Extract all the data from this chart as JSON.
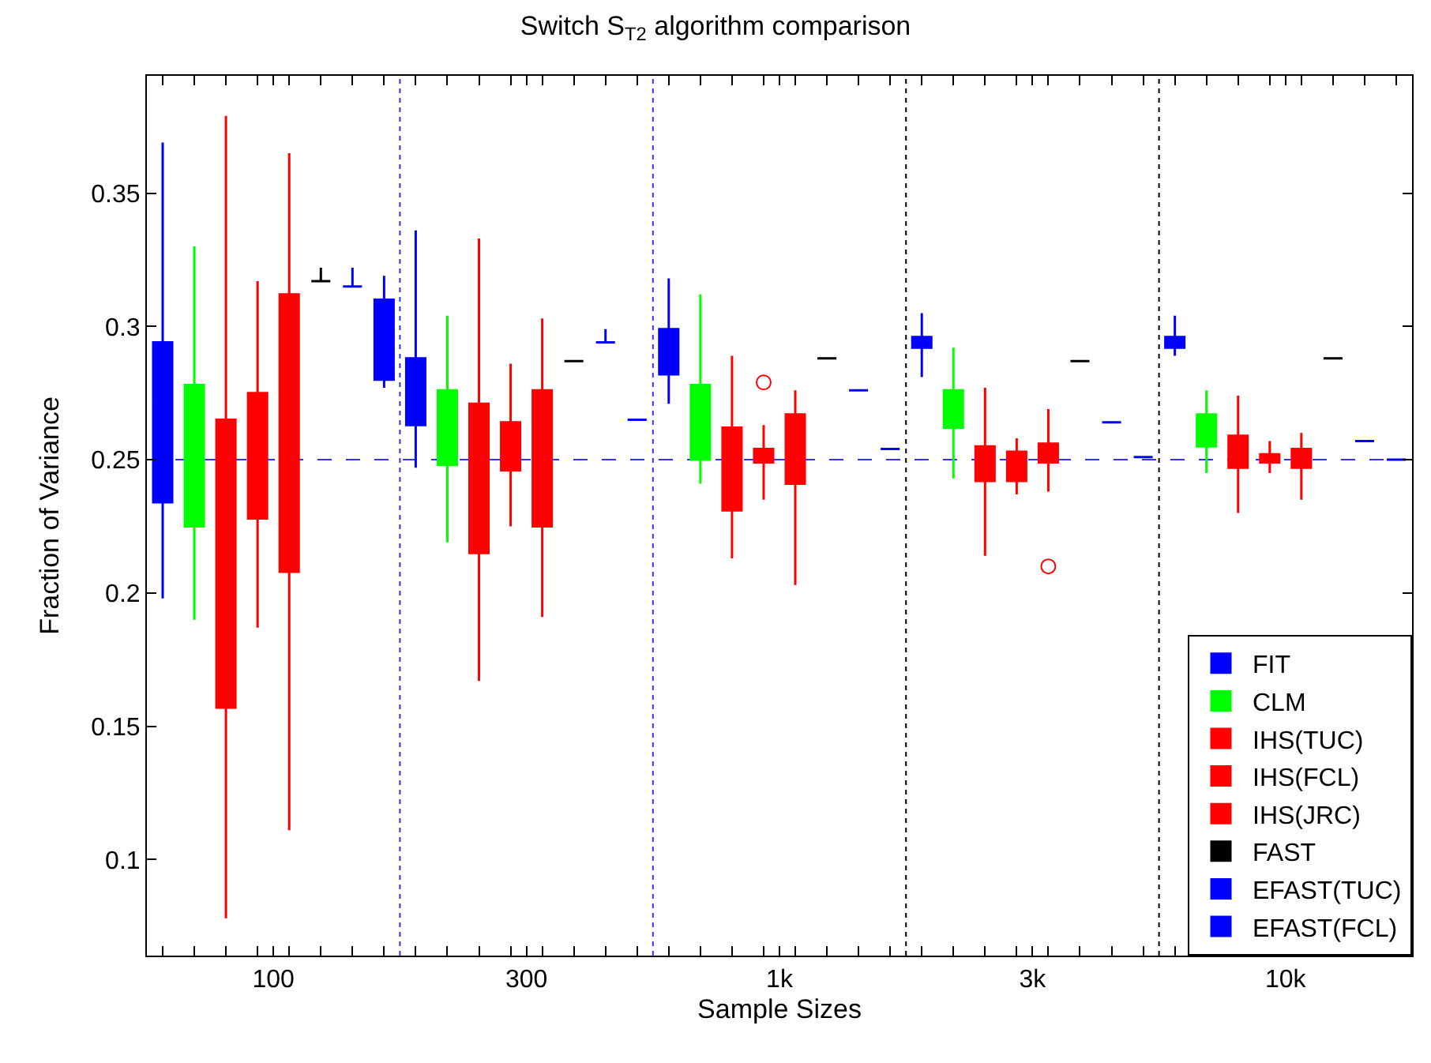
{
  "chart_data": {
    "type": "box",
    "title": "Switch S$_{T2}$ algorithm comparison",
    "xlabel": "Sample Sizes",
    "ylabel": "Fraction of Variance",
    "categories": [
      "100",
      "300",
      "1k",
      "3k",
      "10k"
    ],
    "ylim": [
      0.064,
      0.394
    ],
    "yticks": [
      0.1,
      0.15,
      0.2,
      0.25,
      0.3,
      0.35
    ],
    "legend": "bottom right",
    "ref_lines": [
      {
        "axis": "y",
        "value": 0.25,
        "color": "#3333ff",
        "line_style": "dashed"
      }
    ],
    "series": [
      {
        "name": "FIT",
        "color": "#0000ff",
        "boxes": [
          {
            "low": 0.198,
            "q1": 0.234,
            "median": 0.272,
            "q3": 0.294,
            "high": 0.369
          },
          {
            "low": 0.247,
            "q1": 0.263,
            "median": 0.278,
            "q3": 0.288,
            "high": 0.336
          },
          {
            "low": 0.271,
            "q1": 0.282,
            "median": 0.292,
            "q3": 0.299,
            "high": 0.318
          },
          {
            "low": 0.281,
            "q1": 0.292,
            "median": 0.294,
            "q3": 0.296,
            "high": 0.305
          },
          {
            "low": 0.289,
            "q1": 0.292,
            "median": 0.294,
            "q3": 0.296,
            "high": 0.304
          }
        ]
      },
      {
        "name": "CLM",
        "color": "#00ff00",
        "boxes": [
          {
            "low": 0.19,
            "q1": 0.225,
            "median": 0.26,
            "q3": 0.278,
            "high": 0.33
          },
          {
            "low": 0.219,
            "q1": 0.248,
            "median": 0.262,
            "q3": 0.276,
            "high": 0.304
          },
          {
            "low": 0.241,
            "q1": 0.25,
            "median": 0.267,
            "q3": 0.278,
            "high": 0.312
          },
          {
            "low": 0.243,
            "q1": 0.262,
            "median": 0.273,
            "q3": 0.276,
            "high": 0.292
          },
          {
            "low": 0.245,
            "q1": 0.255,
            "median": 0.26,
            "q3": 0.267,
            "high": 0.276
          }
        ]
      },
      {
        "name": "IHS(TUC)",
        "color": "#ff0000",
        "boxes": [
          {
            "low": 0.078,
            "q1": 0.157,
            "median": 0.25,
            "q3": 0.265,
            "high": 0.379
          },
          {
            "low": 0.167,
            "q1": 0.215,
            "median": 0.245,
            "q3": 0.271,
            "high": 0.333
          },
          {
            "low": 0.213,
            "q1": 0.231,
            "median": 0.248,
            "q3": 0.262,
            "high": 0.289
          },
          {
            "low": 0.214,
            "q1": 0.242,
            "median": 0.244,
            "q3": 0.255,
            "high": 0.277
          },
          {
            "low": 0.23,
            "q1": 0.247,
            "median": 0.25,
            "q3": 0.259,
            "high": 0.274
          }
        ]
      },
      {
        "name": "IHS(FCL)",
        "color": "#ff0000",
        "boxes": [
          {
            "low": 0.187,
            "q1": 0.228,
            "median": 0.251,
            "q3": 0.275,
            "high": 0.317
          },
          {
            "low": 0.225,
            "q1": 0.246,
            "median": 0.256,
            "q3": 0.264,
            "high": 0.286
          },
          {
            "low": 0.235,
            "q1": 0.249,
            "median": 0.251,
            "q3": 0.254,
            "high": 0.263,
            "outliers": [
              0.279
            ]
          },
          {
            "low": 0.237,
            "q1": 0.242,
            "median": 0.248,
            "q3": 0.253,
            "high": 0.258
          },
          {
            "low": 0.245,
            "q1": 0.249,
            "median": 0.25,
            "q3": 0.252,
            "high": 0.257
          }
        ]
      },
      {
        "name": "IHS(JRC)",
        "color": "#ff0000",
        "boxes": [
          {
            "low": 0.111,
            "q1": 0.208,
            "median": 0.273,
            "q3": 0.312,
            "high": 0.365
          },
          {
            "low": 0.191,
            "q1": 0.225,
            "median": 0.259,
            "q3": 0.276,
            "high": 0.303
          },
          {
            "low": 0.203,
            "q1": 0.241,
            "median": 0.249,
            "q3": 0.267,
            "high": 0.276
          },
          {
            "low": 0.238,
            "q1": 0.249,
            "median": 0.253,
            "q3": 0.256,
            "high": 0.269,
            "outliers": [
              0.21
            ]
          },
          {
            "low": 0.235,
            "q1": 0.247,
            "median": 0.25,
            "q3": 0.254,
            "high": 0.26
          }
        ]
      },
      {
        "name": "FAST",
        "color": "#000000",
        "boxes": [
          {
            "low": 0.317,
            "q1": 0.317,
            "median": 0.317,
            "q3": 0.317,
            "high": 0.322
          },
          {
            "low": 0.287,
            "q1": 0.287,
            "median": 0.287,
            "q3": 0.287,
            "high": 0.287
          },
          {
            "low": 0.288,
            "q1": 0.288,
            "median": 0.288,
            "q3": 0.288,
            "high": 0.288
          },
          {
            "low": 0.287,
            "q1": 0.287,
            "median": 0.287,
            "q3": 0.287,
            "high": 0.287
          },
          {
            "low": 0.288,
            "q1": 0.288,
            "median": 0.288,
            "q3": 0.288,
            "high": 0.288
          }
        ]
      },
      {
        "name": "EFAST(TUC)",
        "color": "#0000ff",
        "boxes": [
          {
            "low": 0.315,
            "q1": 0.315,
            "median": 0.315,
            "q3": 0.315,
            "high": 0.322
          },
          {
            "low": 0.294,
            "q1": 0.294,
            "median": 0.294,
            "q3": 0.294,
            "high": 0.299
          },
          {
            "low": 0.276,
            "q1": 0.276,
            "median": 0.276,
            "q3": 0.276,
            "high": 0.276
          },
          {
            "low": 0.264,
            "q1": 0.264,
            "median": 0.264,
            "q3": 0.264,
            "high": 0.264
          },
          {
            "low": 0.257,
            "q1": 0.257,
            "median": 0.257,
            "q3": 0.257,
            "high": 0.257
          }
        ]
      },
      {
        "name": "EFAST(FCL)",
        "color": "#0000ff",
        "boxes": [
          {
            "low": 0.277,
            "q1": 0.28,
            "median": 0.293,
            "q3": 0.31,
            "high": 0.319
          },
          {
            "low": 0.265,
            "q1": 0.265,
            "median": 0.265,
            "q3": 0.265,
            "high": 0.265
          },
          {
            "low": 0.254,
            "q1": 0.254,
            "median": 0.254,
            "q3": 0.254,
            "high": 0.254
          },
          {
            "low": 0.251,
            "q1": 0.251,
            "median": 0.251,
            "q3": 0.251,
            "high": 0.251
          },
          {
            "low": 0.25,
            "q1": 0.25,
            "median": 0.25,
            "q3": 0.25,
            "high": 0.25
          }
        ]
      }
    ]
  }
}
